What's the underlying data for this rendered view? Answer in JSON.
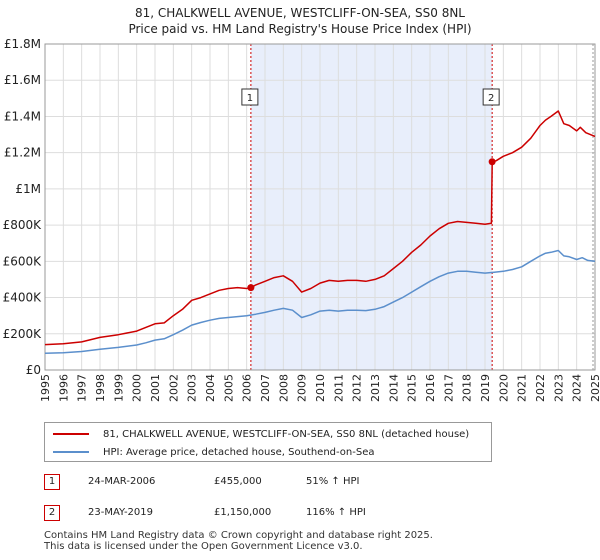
{
  "title_line1": "81, CHALKWELL AVENUE, WESTCLIFF-ON-SEA, SS0 8NL",
  "title_line2": "Price paid vs. HM Land Registry's House Price Index (HPI)",
  "colors": {
    "property": "#cc0000",
    "hpi": "#5b8fcc",
    "shade": "#e8eefb",
    "grid": "#dddddd",
    "marker": "#cc0000"
  },
  "chart_data": {
    "type": "line",
    "x_range": [
      1995,
      2025
    ],
    "ylim": [
      0,
      1800000
    ],
    "y_ticks": [
      0,
      200000,
      400000,
      600000,
      800000,
      1000000,
      1200000,
      1400000,
      1600000,
      1800000
    ],
    "y_tick_labels": [
      "£0",
      "£200K",
      "£400K",
      "£600K",
      "£800K",
      "£1M",
      "£1.2M",
      "£1.4M",
      "£1.6M",
      "£1.8M"
    ],
    "x_ticks": [
      1995,
      1996,
      1997,
      1998,
      1999,
      2000,
      2001,
      2002,
      2003,
      2004,
      2005,
      2006,
      2007,
      2008,
      2009,
      2010,
      2011,
      2012,
      2013,
      2014,
      2015,
      2016,
      2017,
      2018,
      2019,
      2020,
      2021,
      2022,
      2023,
      2024,
      2025
    ],
    "x_tick_labels": [
      "1995",
      "1996",
      "1997",
      "1998",
      "1999",
      "2000",
      "2001",
      "2002",
      "2003",
      "2004",
      "2005",
      "2006",
      "2007",
      "2008",
      "2009",
      "2010",
      "2011",
      "2012",
      "2013",
      "2014",
      "2015",
      "2016",
      "2017",
      "2018",
      "2019",
      "2020",
      "2021",
      "2022",
      "2023",
      "2024",
      "2025"
    ],
    "shaded_range": [
      2006.23,
      2019.39
    ],
    "series": [
      {
        "name": "81, CHALKWELL AVENUE, WESTCLIFF-ON-SEA, SS0 8NL (detached house)",
        "x": [
          1995,
          1996,
          1997,
          1998,
          1999,
          2000,
          2000.5,
          2001,
          2001.5,
          2002,
          2002.5,
          2003,
          2003.5,
          2004,
          2004.5,
          2005,
          2005.5,
          2006,
          2006.23,
          2006.5,
          2007,
          2007.5,
          2008,
          2008.5,
          2009,
          2009.5,
          2010,
          2010.5,
          2011,
          2011.5,
          2012,
          2012.5,
          2013,
          2013.5,
          2014,
          2014.5,
          2015,
          2015.5,
          2016,
          2016.5,
          2017,
          2017.5,
          2018,
          2018.5,
          2019,
          2019.35,
          2019.39,
          2019.6,
          2020,
          2020.5,
          2021,
          2021.5,
          2022,
          2022.3,
          2022.6,
          2023,
          2023.3,
          2023.6,
          2024,
          2024.2,
          2024.5,
          2025
        ],
        "values": [
          140000,
          145000,
          155000,
          180000,
          195000,
          215000,
          235000,
          255000,
          260000,
          300000,
          335000,
          385000,
          400000,
          420000,
          440000,
          450000,
          455000,
          450000,
          455000,
          470000,
          490000,
          510000,
          520000,
          490000,
          430000,
          450000,
          480000,
          495000,
          490000,
          495000,
          495000,
          490000,
          500000,
          520000,
          560000,
          600000,
          650000,
          690000,
          740000,
          780000,
          810000,
          820000,
          815000,
          810000,
          805000,
          810000,
          1150000,
          1155000,
          1180000,
          1200000,
          1230000,
          1280000,
          1350000,
          1380000,
          1400000,
          1430000,
          1360000,
          1350000,
          1320000,
          1340000,
          1310000,
          1290000
        ]
      },
      {
        "name": "HPI: Average price, detached house, Southend-on-Sea",
        "x": [
          1995,
          1996,
          1997,
          1998,
          1999,
          2000,
          2000.5,
          2001,
          2001.5,
          2002,
          2002.5,
          2003,
          2003.5,
          2004,
          2004.5,
          2005,
          2005.5,
          2006,
          2006.5,
          2007,
          2007.5,
          2008,
          2008.5,
          2009,
          2009.5,
          2010,
          2010.5,
          2011,
          2011.5,
          2012,
          2012.5,
          2013,
          2013.5,
          2014,
          2014.5,
          2015,
          2015.5,
          2016,
          2016.5,
          2017,
          2017.5,
          2018,
          2018.5,
          2019,
          2019.5,
          2020,
          2020.5,
          2021,
          2021.5,
          2022,
          2022.3,
          2022.6,
          2023,
          2023.3,
          2023.6,
          2024,
          2024.3,
          2024.6,
          2025
        ],
        "values": [
          92000,
          95000,
          102000,
          115000,
          125000,
          138000,
          150000,
          165000,
          172000,
          195000,
          220000,
          248000,
          262000,
          275000,
          285000,
          290000,
          295000,
          300000,
          308000,
          318000,
          330000,
          340000,
          330000,
          290000,
          305000,
          325000,
          330000,
          325000,
          330000,
          330000,
          328000,
          335000,
          350000,
          375000,
          400000,
          430000,
          460000,
          490000,
          515000,
          535000,
          545000,
          545000,
          540000,
          535000,
          540000,
          545000,
          555000,
          570000,
          600000,
          630000,
          645000,
          650000,
          660000,
          630000,
          625000,
          610000,
          620000,
          605000,
          600000
        ]
      }
    ],
    "sales": [
      {
        "label": "1",
        "x": 2006.23,
        "value": 455000
      },
      {
        "label": "2",
        "x": 2019.39,
        "value": 1150000
      }
    ]
  },
  "legend": {
    "property_label": "81, CHALKWELL AVENUE, WESTCLIFF-ON-SEA, SS0 8NL (detached house)",
    "hpi_label": "HPI: Average price, detached house, Southend-on-Sea"
  },
  "annotations": [
    {
      "label": "1",
      "date": "24-MAR-2006",
      "price": "£455,000",
      "hpi": "51% ↑ HPI"
    },
    {
      "label": "2",
      "date": "23-MAY-2019",
      "price": "£1,150,000",
      "hpi": "116% ↑ HPI"
    }
  ],
  "footer": {
    "line1": "Contains HM Land Registry data © Crown copyright and database right 2025.",
    "line2": "This data is licensed under the Open Government Licence v3.0."
  }
}
